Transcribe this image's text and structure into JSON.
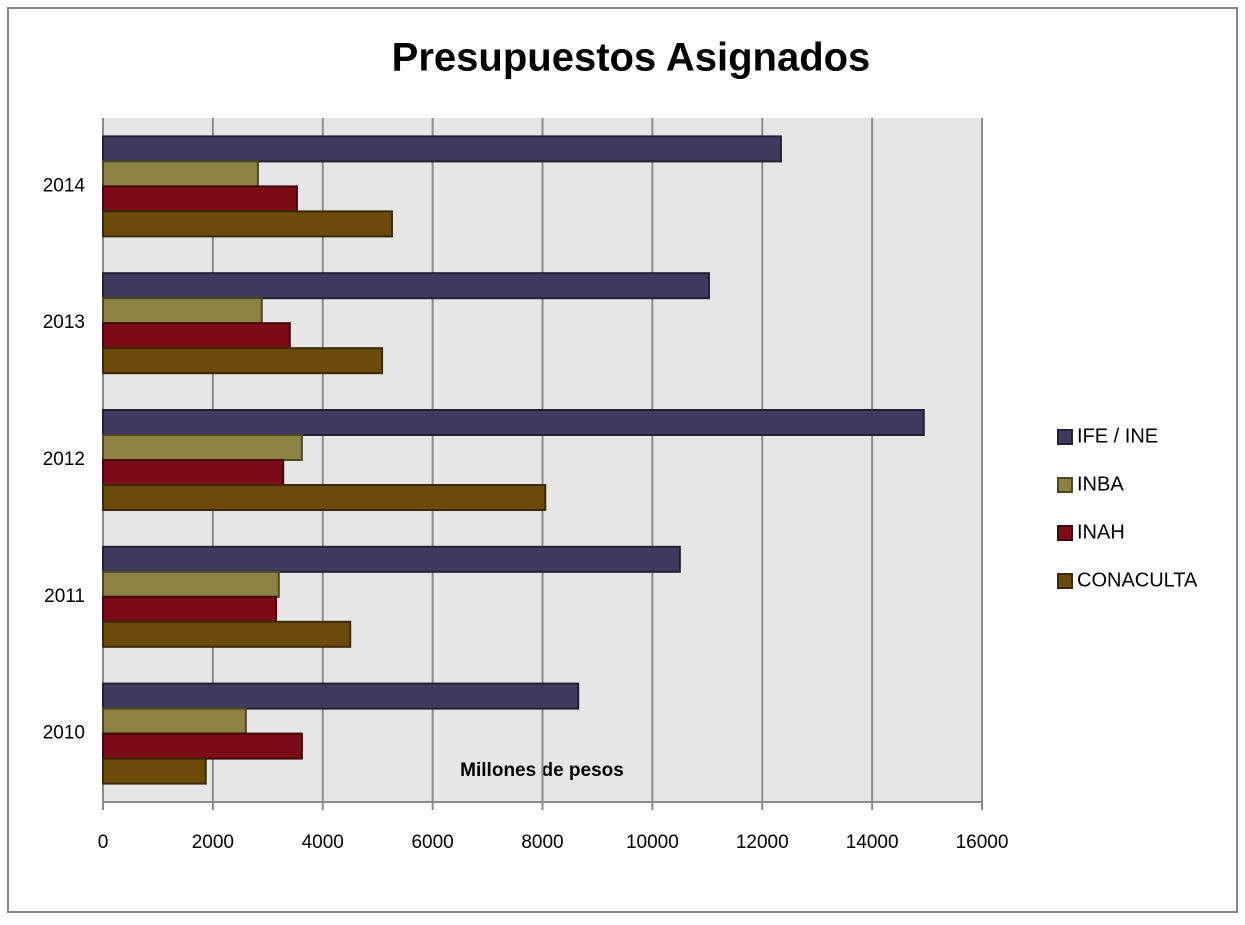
{
  "chart_data": {
    "type": "barh",
    "title": "Presupuestos Asignados",
    "xlabel": "Millones de pesos",
    "categories": [
      "2010",
      "2011",
      "2012",
      "2013",
      "2014"
    ],
    "series": [
      {
        "name": "IFE / INE",
        "color": "#403b5e",
        "values": [
          8650,
          10500,
          14940,
          11030,
          12340
        ]
      },
      {
        "name": "INBA",
        "color": "#8c8244",
        "values": [
          2600,
          3200,
          3620,
          2890,
          2820
        ]
      },
      {
        "name": "INAH",
        "color": "#7b0c16",
        "values": [
          3620,
          3150,
          3280,
          3400,
          3530
        ]
      },
      {
        "name": "CONACULTA",
        "color": "#6b4a0c",
        "values": [
          1870,
          4500,
          8050,
          5080,
          5260
        ]
      }
    ],
    "xlim": [
      0,
      16000
    ],
    "xticks": [
      0,
      2000,
      4000,
      6000,
      8000,
      10000,
      12000,
      14000,
      16000
    ],
    "grid": true,
    "legend": "right"
  }
}
